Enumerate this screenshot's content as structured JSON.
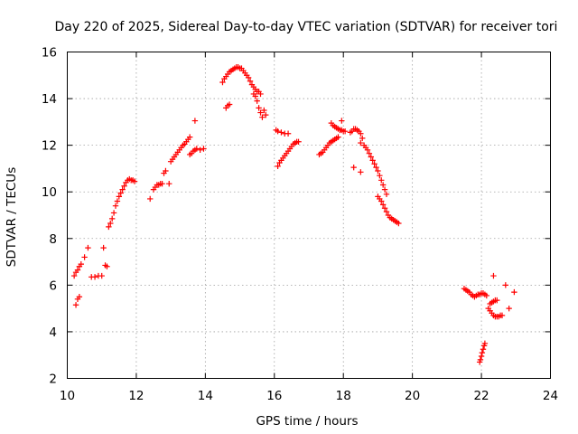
{
  "chart_data": {
    "type": "scatter",
    "title": "Day 220 of 2025, Sidereal Day-to-day VTEC variation (SDTVAR) for receiver tori",
    "xlabel": "GPS time / hours",
    "ylabel": "SDTVAR / TECUs",
    "xlim": [
      10,
      24
    ],
    "ylim": [
      2,
      16
    ],
    "xticks": [
      "10",
      "12",
      "14",
      "16",
      "18",
      "20",
      "22",
      "24"
    ],
    "yticks": [
      "2",
      "4",
      "6",
      "8",
      "10",
      "12",
      "14",
      "16"
    ],
    "grid": true,
    "marker": "plus",
    "series": [
      {
        "name": "SDTVAR",
        "color": "#ff0000",
        "points": [
          [
            10.2,
            6.4
          ],
          [
            10.25,
            6.55
          ],
          [
            10.3,
            6.65
          ],
          [
            10.35,
            6.8
          ],
          [
            10.4,
            6.9
          ],
          [
            10.25,
            5.15
          ],
          [
            10.3,
            5.4
          ],
          [
            10.35,
            5.5
          ],
          [
            10.5,
            7.2
          ],
          [
            10.6,
            7.6
          ],
          [
            10.7,
            6.35
          ],
          [
            10.8,
            6.35
          ],
          [
            10.9,
            6.4
          ],
          [
            11.0,
            6.4
          ],
          [
            11.05,
            7.6
          ],
          [
            11.1,
            6.85
          ],
          [
            11.15,
            6.8
          ],
          [
            11.2,
            8.5
          ],
          [
            11.25,
            8.65
          ],
          [
            11.3,
            8.85
          ],
          [
            11.35,
            9.1
          ],
          [
            11.4,
            9.4
          ],
          [
            11.45,
            9.6
          ],
          [
            11.5,
            9.8
          ],
          [
            11.55,
            9.95
          ],
          [
            11.6,
            10.1
          ],
          [
            11.65,
            10.25
          ],
          [
            11.7,
            10.4
          ],
          [
            11.75,
            10.5
          ],
          [
            11.8,
            10.55
          ],
          [
            11.85,
            10.5
          ],
          [
            11.9,
            10.5
          ],
          [
            11.95,
            10.45
          ],
          [
            12.4,
            9.7
          ],
          [
            12.5,
            10.1
          ],
          [
            12.55,
            10.2
          ],
          [
            12.6,
            10.3
          ],
          [
            12.65,
            10.3
          ],
          [
            12.7,
            10.35
          ],
          [
            12.75,
            10.35
          ],
          [
            12.8,
            10.8
          ],
          [
            12.85,
            10.9
          ],
          [
            12.95,
            10.35
          ],
          [
            13.0,
            11.3
          ],
          [
            13.05,
            11.4
          ],
          [
            13.1,
            11.5
          ],
          [
            13.15,
            11.6
          ],
          [
            13.2,
            11.7
          ],
          [
            13.25,
            11.8
          ],
          [
            13.3,
            11.9
          ],
          [
            13.35,
            12.0
          ],
          [
            13.4,
            12.05
          ],
          [
            13.45,
            12.15
          ],
          [
            13.5,
            12.25
          ],
          [
            13.55,
            12.35
          ],
          [
            13.55,
            11.6
          ],
          [
            13.6,
            11.65
          ],
          [
            13.65,
            11.75
          ],
          [
            13.7,
            11.8
          ],
          [
            13.75,
            11.85
          ],
          [
            13.85,
            11.8
          ],
          [
            13.95,
            11.85
          ],
          [
            13.7,
            13.05
          ],
          [
            14.5,
            14.7
          ],
          [
            14.55,
            14.85
          ],
          [
            14.6,
            14.95
          ],
          [
            14.65,
            15.05
          ],
          [
            14.7,
            15.15
          ],
          [
            14.75,
            15.2
          ],
          [
            14.8,
            15.25
          ],
          [
            14.85,
            15.3
          ],
          [
            14.9,
            15.35
          ],
          [
            14.95,
            15.35
          ],
          [
            15.0,
            15.3
          ],
          [
            15.05,
            15.3
          ],
          [
            15.1,
            15.2
          ],
          [
            15.15,
            15.1
          ],
          [
            15.2,
            15.0
          ],
          [
            15.25,
            14.9
          ],
          [
            15.3,
            14.75
          ],
          [
            15.35,
            14.6
          ],
          [
            15.4,
            14.5
          ],
          [
            15.45,
            14.4
          ],
          [
            14.6,
            13.6
          ],
          [
            14.65,
            13.7
          ],
          [
            14.7,
            13.75
          ],
          [
            15.4,
            14.2
          ],
          [
            15.45,
            14.1
          ],
          [
            15.5,
            13.9
          ],
          [
            15.55,
            13.6
          ],
          [
            15.6,
            13.4
          ],
          [
            15.65,
            13.2
          ],
          [
            15.7,
            13.5
          ],
          [
            15.75,
            13.3
          ],
          [
            15.5,
            14.3
          ],
          [
            15.55,
            14.3
          ],
          [
            15.6,
            14.2
          ],
          [
            16.05,
            12.65
          ],
          [
            16.1,
            12.6
          ],
          [
            16.2,
            12.55
          ],
          [
            16.3,
            12.5
          ],
          [
            16.4,
            12.5
          ],
          [
            16.1,
            11.1
          ],
          [
            16.15,
            11.25
          ],
          [
            16.2,
            11.35
          ],
          [
            16.25,
            11.45
          ],
          [
            16.3,
            11.55
          ],
          [
            16.35,
            11.65
          ],
          [
            16.4,
            11.75
          ],
          [
            16.45,
            11.85
          ],
          [
            16.5,
            11.95
          ],
          [
            16.55,
            12.05
          ],
          [
            16.6,
            12.1
          ],
          [
            16.65,
            12.15
          ],
          [
            16.7,
            12.15
          ],
          [
            17.3,
            11.6
          ],
          [
            17.35,
            11.65
          ],
          [
            17.4,
            11.7
          ],
          [
            17.45,
            11.8
          ],
          [
            17.5,
            11.9
          ],
          [
            17.55,
            12.0
          ],
          [
            17.6,
            12.1
          ],
          [
            17.65,
            12.15
          ],
          [
            17.7,
            12.2
          ],
          [
            17.75,
            12.25
          ],
          [
            17.8,
            12.3
          ],
          [
            17.85,
            12.35
          ],
          [
            17.65,
            12.95
          ],
          [
            17.7,
            12.85
          ],
          [
            17.75,
            12.8
          ],
          [
            17.8,
            12.75
          ],
          [
            17.85,
            12.7
          ],
          [
            17.9,
            12.65
          ],
          [
            17.95,
            12.65
          ],
          [
            18.0,
            12.6
          ],
          [
            18.05,
            12.6
          ],
          [
            17.95,
            13.05
          ],
          [
            18.2,
            12.55
          ],
          [
            18.25,
            12.6
          ],
          [
            18.3,
            12.7
          ],
          [
            18.35,
            12.7
          ],
          [
            18.4,
            12.65
          ],
          [
            18.45,
            12.6
          ],
          [
            18.5,
            12.5
          ],
          [
            18.55,
            12.3
          ],
          [
            18.5,
            12.1
          ],
          [
            18.6,
            12.0
          ],
          [
            18.65,
            11.9
          ],
          [
            18.7,
            11.8
          ],
          [
            18.75,
            11.65
          ],
          [
            18.8,
            11.5
          ],
          [
            18.85,
            11.35
          ],
          [
            18.9,
            11.2
          ],
          [
            18.95,
            11.05
          ],
          [
            19.0,
            10.9
          ],
          [
            19.05,
            10.7
          ],
          [
            19.1,
            10.5
          ],
          [
            19.15,
            10.3
          ],
          [
            19.2,
            10.1
          ],
          [
            19.25,
            9.9
          ],
          [
            18.3,
            11.05
          ],
          [
            18.5,
            10.85
          ],
          [
            19.0,
            9.8
          ],
          [
            19.05,
            9.7
          ],
          [
            19.1,
            9.6
          ],
          [
            19.15,
            9.45
          ],
          [
            19.2,
            9.3
          ],
          [
            19.25,
            9.15
          ],
          [
            19.3,
            9.0
          ],
          [
            19.35,
            8.9
          ],
          [
            19.4,
            8.85
          ],
          [
            19.45,
            8.8
          ],
          [
            19.5,
            8.75
          ],
          [
            19.55,
            8.7
          ],
          [
            19.6,
            8.65
          ],
          [
            21.5,
            5.85
          ],
          [
            21.55,
            5.8
          ],
          [
            21.6,
            5.75
          ],
          [
            21.65,
            5.7
          ],
          [
            21.7,
            5.6
          ],
          [
            21.75,
            5.55
          ],
          [
            21.8,
            5.5
          ],
          [
            21.85,
            5.55
          ],
          [
            21.9,
            5.6
          ],
          [
            21.95,
            5.6
          ],
          [
            22.0,
            5.65
          ],
          [
            22.05,
            5.65
          ],
          [
            22.1,
            5.6
          ],
          [
            22.15,
            5.55
          ],
          [
            21.95,
            2.7
          ],
          [
            21.97,
            2.8
          ],
          [
            22.0,
            2.95
          ],
          [
            22.02,
            3.1
          ],
          [
            22.05,
            3.25
          ],
          [
            22.08,
            3.4
          ],
          [
            22.1,
            3.5
          ],
          [
            22.2,
            5.0
          ],
          [
            22.25,
            4.9
          ],
          [
            22.3,
            4.8
          ],
          [
            22.35,
            4.7
          ],
          [
            22.4,
            4.65
          ],
          [
            22.45,
            4.65
          ],
          [
            22.5,
            4.65
          ],
          [
            22.55,
            4.7
          ],
          [
            22.6,
            4.7
          ],
          [
            22.25,
            5.2
          ],
          [
            22.3,
            5.25
          ],
          [
            22.35,
            5.3
          ],
          [
            22.4,
            5.35
          ],
          [
            22.45,
            5.35
          ],
          [
            22.35,
            6.4
          ],
          [
            22.7,
            6.0
          ],
          [
            22.8,
            5.0
          ],
          [
            22.95,
            5.7
          ]
        ]
      }
    ]
  }
}
